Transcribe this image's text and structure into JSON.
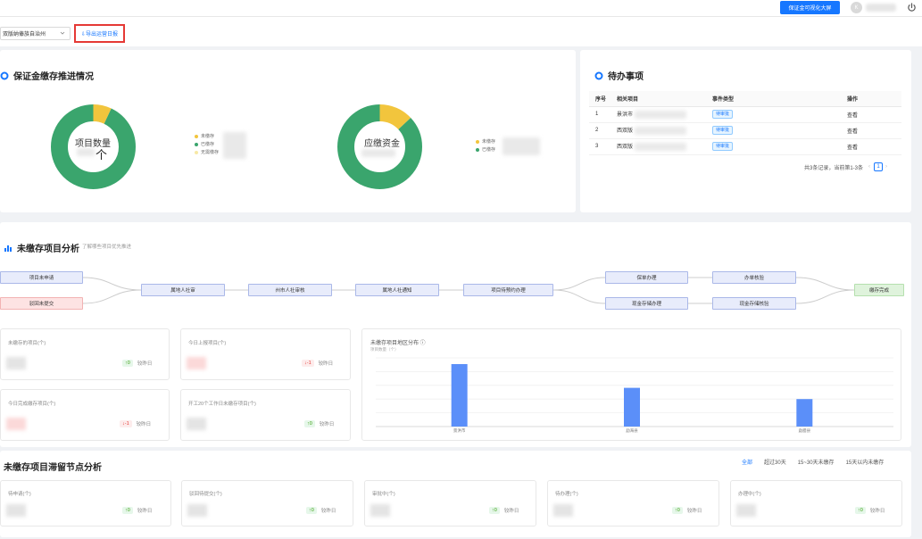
{
  "header": {
    "bigscreen_label": "保证金可视化大屏",
    "avatar_letter": "K"
  },
  "filter": {
    "region": "双版纳傣族自治州",
    "export_label": "⇩导出运营日报"
  },
  "deposit_panel": {
    "title": "保证金缴存推进情况",
    "donut1_label": "项目数量",
    "donut1_unit": "个",
    "donut1_legend": [
      {
        "label": "未缴存",
        "color": "#f2c53d"
      },
      {
        "label": "已缴存",
        "color": "#3aa56d"
      },
      {
        "label": "无需缴存",
        "color": "#f7e8a6"
      }
    ],
    "donut2_label": "应缴资金",
    "donut2_legend": [
      {
        "label": "未缴存",
        "color": "#f2c53d"
      },
      {
        "label": "已缴存",
        "color": "#3aa56d"
      }
    ],
    "donut1_shares": [
      0.07,
      0.93
    ],
    "donut2_shares": [
      0.13,
      0.87
    ]
  },
  "todo_panel": {
    "title": "待办事项",
    "columns": [
      "序号",
      "相关项目",
      "事件类型",
      "操作"
    ],
    "rows": [
      {
        "no": "1",
        "project": "景洪市",
        "type": "待审批",
        "action": "查看"
      },
      {
        "no": "2",
        "project": "西双版",
        "type": "待审批",
        "action": "查看"
      },
      {
        "no": "3",
        "project": "西双版",
        "type": "待审批",
        "action": "查看"
      }
    ],
    "pager_text": "共3条记录，当前第1-3条",
    "page": "1"
  },
  "analysis": {
    "title": "未缴存项目分析",
    "subtitle": "了解哪些项目优先推进",
    "flow_nodes": {
      "n1": "项目未申请",
      "n2": "驳回未提交",
      "n3": "属地人社审",
      "n4": "州市人社审核",
      "n5": "属地人社通知",
      "n6": "项目待预约办理",
      "n7": "保单办理",
      "n8": "现金存储办理",
      "n9": "办单核验",
      "n10": "现金存储核验",
      "n11": "缴存完成"
    },
    "stat_cards": [
      {
        "label": "未缴存的项目(个)",
        "trend": "↑0",
        "trend_dir": "up",
        "note": "较昨日"
      },
      {
        "label": "今日上报项目(个)",
        "trend": "↓-1",
        "trend_dir": "down",
        "note": "较昨日"
      },
      {
        "label": "今日完成缴存项目(个)",
        "trend": "↓-1",
        "trend_dir": "down",
        "note": "较昨日"
      },
      {
        "label": "开工20个工作日未缴存项目(个)",
        "trend": "↑0",
        "trend_dir": "up",
        "note": "较昨日"
      }
    ],
    "chart_title": "未缴存项目地区分布 ⓘ",
    "chart_unit": "项目数量（个）"
  },
  "chart_data": {
    "type": "bar",
    "categories": [
      "景洪市",
      "勐海县",
      "勐腊县"
    ],
    "values": [
      10,
      6.2,
      4.4
    ],
    "ylim": [
      0,
      11
    ],
    "color": "#5b8ff9",
    "grid": true
  },
  "stagnation": {
    "title": "未缴存项目滞留节点分析",
    "ranges": [
      "全部",
      "超过30天",
      "15~30天未缴存",
      "15天以内未缴存"
    ],
    "cards": [
      {
        "label": "待申请(个)",
        "trend": "↑0",
        "note": "较昨日"
      },
      {
        "label": "驳回待提交(个)",
        "trend": "↑0",
        "note": "较昨日"
      },
      {
        "label": "审批中(个)",
        "trend": "↑0",
        "note": "较昨日"
      },
      {
        "label": "待办理(个)",
        "trend": "↑0",
        "note": "较昨日"
      },
      {
        "label": "办理中(个)",
        "trend": "↑0",
        "note": "较昨日"
      }
    ]
  }
}
